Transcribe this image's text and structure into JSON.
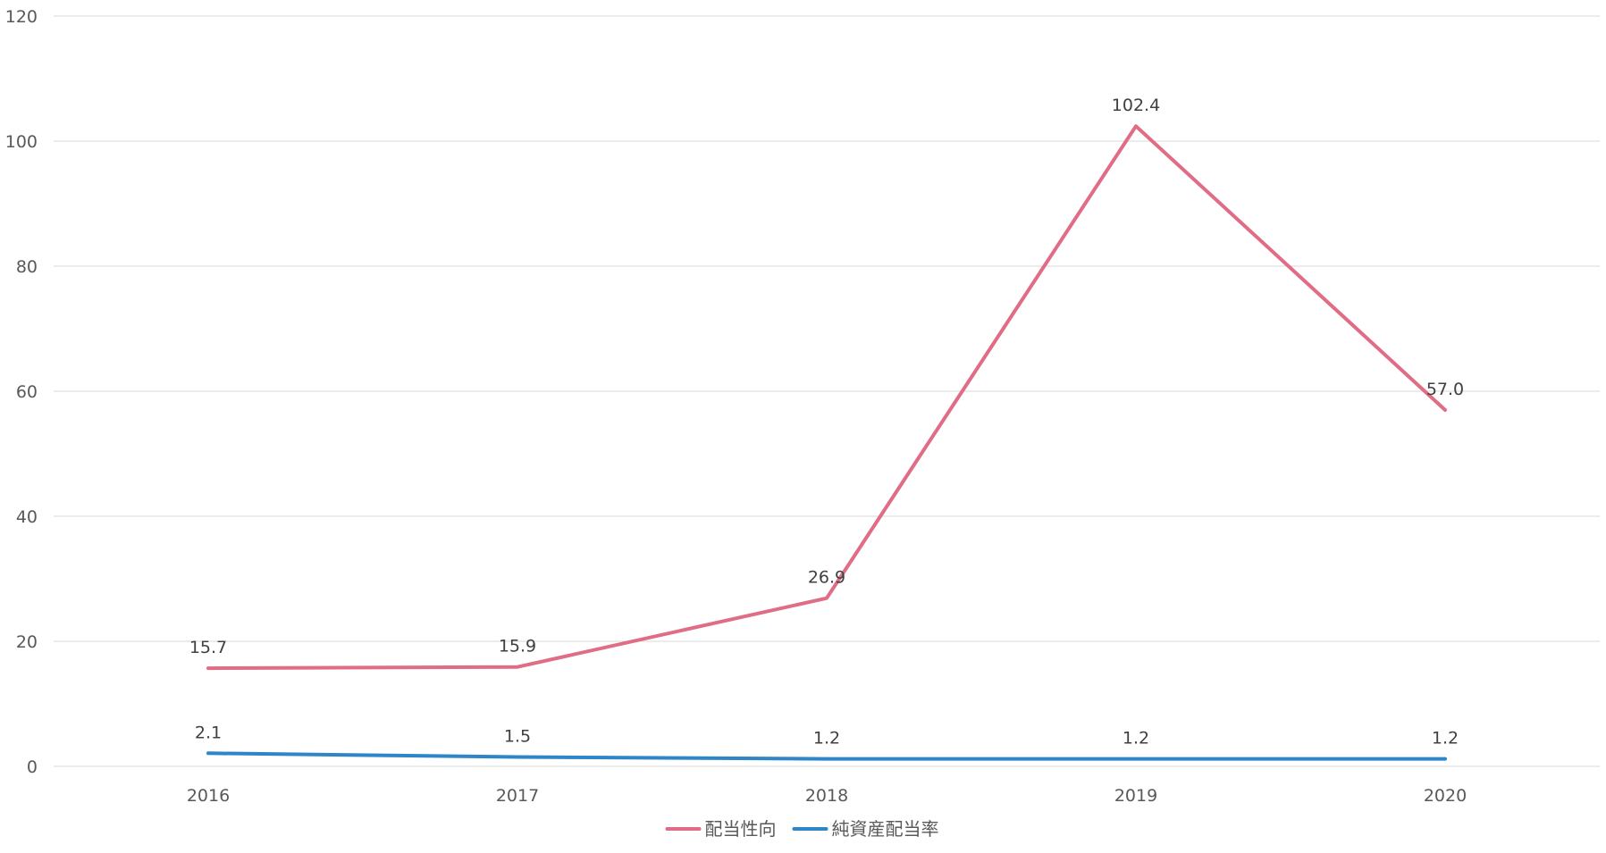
{
  "chart_data": {
    "type": "line",
    "categories": [
      "2016",
      "2017",
      "2018",
      "2019",
      "2020"
    ],
    "ylim": [
      0,
      120
    ],
    "yticks": [
      0,
      20,
      40,
      60,
      80,
      100,
      120
    ],
    "grid": true,
    "legend_position": "bottom",
    "series": [
      {
        "name": "配当性向",
        "color": "#e06c85",
        "values": [
          15.7,
          15.9,
          26.9,
          102.4,
          57.0
        ],
        "labels": [
          "15.7",
          "15.9",
          "26.9",
          "102.4",
          "57.0"
        ]
      },
      {
        "name": "純資産配当率",
        "color": "#2e86c8",
        "values": [
          2.1,
          1.5,
          1.2,
          1.2,
          1.2
        ],
        "labels": [
          "2.1",
          "1.5",
          "1.2",
          "1.2",
          "1.2"
        ]
      }
    ]
  }
}
